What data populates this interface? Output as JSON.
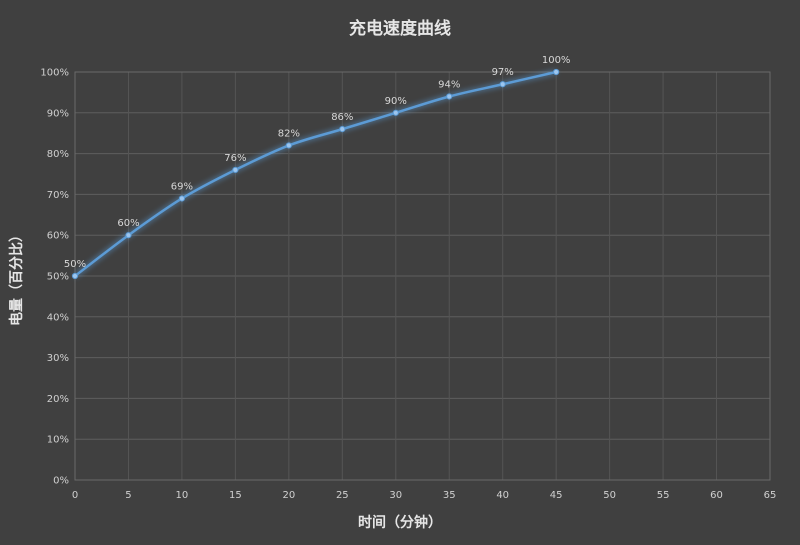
{
  "chart_data": {
    "type": "line",
    "title": "充电速度曲线",
    "xlabel": "时间（分钟）",
    "ylabel": "电量（百分比）",
    "xlim": [
      0,
      65
    ],
    "ylim": [
      0,
      100
    ],
    "x_ticks": [
      "0",
      "5",
      "10",
      "15",
      "20",
      "25",
      "30",
      "35",
      "40",
      "45",
      "50",
      "55",
      "60",
      "65"
    ],
    "y_ticks": [
      "0%",
      "10%",
      "20%",
      "30%",
      "40%",
      "50%",
      "60%",
      "70%",
      "80%",
      "90%",
      "100%"
    ],
    "grid": true,
    "legend": "none",
    "series": [
      {
        "x": [
          0,
          5,
          10,
          15,
          20,
          25,
          30,
          35,
          40,
          45
        ],
        "values": [
          50,
          60,
          69,
          76,
          82,
          86,
          90,
          94,
          97,
          100
        ],
        "labels": [
          "50%",
          "60%",
          "69%",
          "76%",
          "82%",
          "86%",
          "90%",
          "94%",
          "97%",
          "100%"
        ],
        "color": "#5b9bd5"
      }
    ]
  }
}
